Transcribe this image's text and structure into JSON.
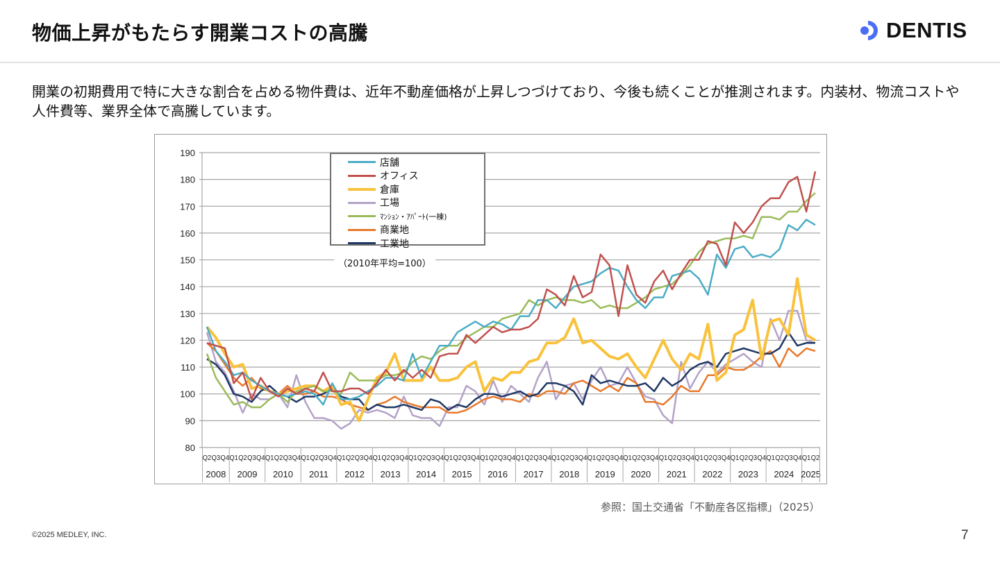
{
  "header": {
    "title": "物価上昇がもたらす開業コストの高騰",
    "logo_text": "DENTIS",
    "logo_color": "#4a6cf7"
  },
  "body": {
    "text": "開業の初期費用で特に大きな割合を占める物件費は、近年不動産価格が上昇しつづけており、今後も続くことが推測されます。内装材、物流コストや人件費等、業界全体で高騰しています。"
  },
  "chart_data": {
    "type": "line",
    "title": "",
    "xlabel": "",
    "ylabel": "",
    "base_note": "（2010年平均=100）",
    "ylim": [
      80,
      190
    ],
    "yticks": [
      "80",
      "90",
      "100",
      "110",
      "120",
      "130",
      "140",
      "150",
      "160",
      "170",
      "180",
      "190"
    ],
    "grid": true,
    "legend_position": "top-center",
    "x_axis": [
      {
        "year": "2008",
        "quarters": [
          "Q2",
          "Q3",
          "Q4"
        ]
      },
      {
        "year": "2009",
        "quarters": [
          "Q1",
          "Q2",
          "Q3",
          "Q4"
        ]
      },
      {
        "year": "2010",
        "quarters": [
          "Q1",
          "Q2",
          "Q3",
          "Q4"
        ]
      },
      {
        "year": "2011",
        "quarters": [
          "Q1",
          "Q2",
          "Q3",
          "Q4"
        ]
      },
      {
        "year": "2012",
        "quarters": [
          "Q1",
          "Q2",
          "Q3",
          "Q4"
        ]
      },
      {
        "year": "2013",
        "quarters": [
          "Q1",
          "Q2",
          "Q3",
          "Q4"
        ]
      },
      {
        "year": "2014",
        "quarters": [
          "Q1",
          "Q2",
          "Q3",
          "Q4"
        ]
      },
      {
        "year": "2015",
        "quarters": [
          "Q1",
          "Q2",
          "Q3",
          "Q4"
        ]
      },
      {
        "year": "2016",
        "quarters": [
          "Q1",
          "Q2",
          "Q3",
          "Q4"
        ]
      },
      {
        "year": "2017",
        "quarters": [
          "Q1",
          "Q2",
          "Q3",
          "Q4"
        ]
      },
      {
        "year": "2018",
        "quarters": [
          "Q1",
          "Q2",
          "Q3",
          "Q4"
        ]
      },
      {
        "year": "2019",
        "quarters": [
          "Q1",
          "Q2",
          "Q3",
          "Q4"
        ]
      },
      {
        "year": "2020",
        "quarters": [
          "Q1",
          "Q2",
          "Q3",
          "Q4"
        ]
      },
      {
        "year": "2021",
        "quarters": [
          "Q1",
          "Q2",
          "Q3",
          "Q4"
        ]
      },
      {
        "year": "2022",
        "quarters": [
          "Q1",
          "Q2",
          "Q3",
          "Q4"
        ]
      },
      {
        "year": "2023",
        "quarters": [
          "Q1",
          "Q2",
          "Q3",
          "Q4"
        ]
      },
      {
        "year": "2024",
        "quarters": [
          "Q1",
          "Q2",
          "Q3",
          "Q4"
        ]
      },
      {
        "year": "2025",
        "quarters": [
          "Q1",
          "Q2"
        ]
      }
    ],
    "series": [
      {
        "name": "店舗",
        "color": "#4bacc6",
        "width": 2.5,
        "values": [
          125,
          116,
          112,
          107,
          108,
          105,
          103,
          101,
          100,
          99,
          100,
          101,
          100,
          96,
          104,
          98,
          98,
          99,
          101,
          103,
          106,
          106,
          105,
          115,
          106,
          112,
          118,
          118,
          123,
          125,
          127,
          125,
          127,
          126,
          124,
          129,
          129,
          135,
          135,
          132,
          136,
          140,
          141,
          142,
          145,
          147,
          146,
          140,
          135,
          132,
          136,
          136,
          144,
          145,
          146,
          143,
          137,
          152,
          147,
          154,
          155,
          151,
          152,
          151,
          154,
          163,
          161,
          165,
          163
        ]
      },
      {
        "name": "オフィス",
        "color": "#c0504d",
        "width": 2.5,
        "values": [
          119,
          118,
          117,
          104,
          108,
          98,
          106,
          101,
          99,
          102,
          100,
          102,
          101,
          108,
          101,
          101,
          102,
          102,
          100,
          104,
          109,
          105,
          109,
          106,
          109,
          106,
          114,
          115,
          115,
          122,
          119,
          122,
          125,
          123,
          124,
          124,
          125,
          128,
          139,
          137,
          133,
          144,
          136,
          138,
          152,
          148,
          129,
          148,
          137,
          134,
          142,
          146,
          139,
          145,
          150,
          150,
          157,
          156,
          148,
          164,
          160,
          164,
          170,
          173,
          173,
          179,
          181,
          168,
          183
        ]
      },
      {
        "name": "倉庫",
        "color": "#f9c23c",
        "width": 4,
        "values": [
          125,
          121,
          115,
          110,
          111,
          102,
          103,
          101,
          100,
          101,
          102,
          103,
          103,
          101,
          103,
          96,
          97,
          90,
          98,
          106,
          108,
          115,
          105,
          105,
          105,
          110,
          105,
          105,
          106,
          110,
          112,
          101,
          106,
          105,
          108,
          108,
          112,
          113,
          119,
          119,
          121,
          128,
          119,
          120,
          117,
          114,
          113,
          115,
          110,
          106,
          113,
          120,
          113,
          109,
          115,
          113,
          126,
          105,
          108,
          122,
          124,
          135,
          113,
          127,
          128,
          122,
          143,
          122,
          120
        ]
      },
      {
        "name": "工場",
        "color": "#b3a2c7",
        "width": 2.5,
        "values": [
          123,
          112,
          108,
          101,
          93,
          100,
          98,
          98,
          100,
          95,
          107,
          97,
          91,
          91,
          90,
          87,
          89,
          94,
          93,
          94,
          93,
          91,
          99,
          92,
          91,
          91,
          88,
          95,
          95,
          103,
          101,
          96,
          105,
          97,
          103,
          100,
          97,
          106,
          112,
          98,
          103,
          104,
          98,
          105,
          110,
          103,
          104,
          110,
          104,
          99,
          98,
          92,
          89,
          112,
          102,
          108,
          112,
          108,
          111,
          113,
          115,
          112,
          110,
          128,
          120,
          131,
          131,
          120,
          119
        ]
      },
      {
        "name": "ﾏﾝｼｮﾝ・ｱﾊﾟｰﾄ(一棟)",
        "color": "#9bbb59",
        "width": 2.5,
        "values": [
          115,
          106,
          101,
          96,
          97,
          95,
          95,
          98,
          100,
          97,
          101,
          102,
          103,
          101,
          101,
          100,
          108,
          105,
          105,
          105,
          107,
          107,
          108,
          112,
          114,
          113,
          116,
          118,
          118,
          121,
          123,
          125,
          125,
          128,
          129,
          130,
          135,
          133,
          135,
          136,
          135,
          135,
          134,
          135,
          132,
          133,
          132,
          132,
          134,
          136,
          139,
          140,
          141,
          144,
          148,
          153,
          156,
          157,
          158,
          158,
          159,
          158,
          166,
          166,
          165,
          168,
          168,
          172,
          175
        ]
      },
      {
        "name": "商業地",
        "color": "#e8782a",
        "width": 2.5,
        "values": [
          119,
          116,
          111,
          106,
          103,
          106,
          102,
          101,
          100,
          103,
          100,
          100,
          101,
          99,
          99,
          98,
          96,
          95,
          94,
          96,
          97,
          99,
          97,
          96,
          95,
          95,
          95,
          93,
          93,
          94,
          96,
          98,
          99,
          98,
          98,
          97,
          100,
          99,
          101,
          101,
          100,
          104,
          105,
          103,
          101,
          103,
          101,
          106,
          104,
          97,
          97,
          96,
          99,
          103,
          101,
          101,
          107,
          107,
          110,
          109,
          109,
          111,
          114,
          116,
          110,
          117,
          114,
          117,
          116
        ]
      },
      {
        "name": "工業地",
        "color": "#1f3864",
        "width": 2.5,
        "values": [
          113,
          111,
          107,
          100,
          99,
          97,
          101,
          103,
          100,
          99,
          97,
          99,
          99,
          100,
          102,
          99,
          98,
          98,
          94,
          96,
          95,
          95,
          96,
          95,
          94,
          98,
          97,
          94,
          96,
          95,
          98,
          100,
          100,
          99,
          100,
          101,
          99,
          100,
          104,
          104,
          103,
          101,
          96,
          107,
          104,
          105,
          104,
          103,
          103,
          104,
          101,
          106,
          103,
          105,
          109,
          111,
          112,
          110,
          115,
          116,
          117,
          116,
          115,
          115,
          117,
          123,
          118,
          119,
          119
        ]
      }
    ]
  },
  "source": "参照：国土交通省「不動産各区指標」（2025）",
  "footer": {
    "copyright": "©2025 MEDLEY, INC.",
    "page_number": "7"
  }
}
